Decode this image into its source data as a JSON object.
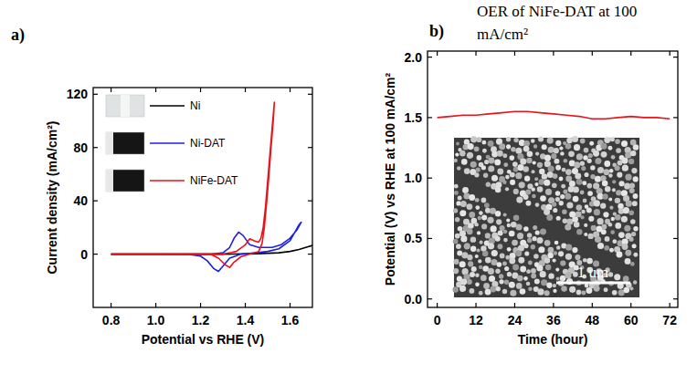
{
  "chart_data": [
    {
      "type": "line",
      "panel": "a)",
      "x_label": "Potential vs RHE (V)",
      "y_label": "Current density (mA/cm²)",
      "xlim": [
        0.72,
        1.7
      ],
      "ylim": [
        -40,
        125
      ],
      "xticks": [
        0.8,
        {
          "value": 1,
          "label": "1.0"
        },
        1.2,
        1.4,
        1.6
      ],
      "yticks": [
        0,
        40,
        80,
        120
      ],
      "grid": false,
      "legend": "upper left",
      "series": [
        {
          "name": "Ni",
          "color": "#000000",
          "x": [
            0.8,
            0.9,
            1.1,
            1.3,
            1.45,
            1.55,
            1.6,
            1.64,
            1.68,
            1.7
          ],
          "values": [
            0,
            0,
            0,
            0,
            0.3,
            1,
            2,
            3.5,
            5.5,
            6.5
          ]
        },
        {
          "name": "Ni-DAT",
          "color": "#1f1fe0",
          "x": [
            0.8,
            1.0,
            1.25,
            1.3,
            1.33,
            1.35,
            1.37,
            1.39,
            1.42,
            1.46,
            1.52,
            1.56,
            1.6,
            1.63,
            1.65,
            1.64,
            1.6,
            1.55,
            1.5,
            1.45,
            1.38,
            1.33,
            1.3,
            1.28,
            1.26,
            1.23,
            1.2,
            1.15,
            1.0,
            0.8
          ],
          "values": [
            0,
            0,
            0,
            1,
            5,
            12,
            16.5,
            14,
            7,
            5,
            5,
            7,
            12,
            18,
            24,
            22,
            10,
            4,
            2,
            1,
            0,
            -3,
            -9,
            -13,
            -11,
            -5,
            -1.5,
            -0.3,
            0,
            0
          ]
        },
        {
          "name": "NiFe-DAT",
          "color": "#e8141b",
          "x": [
            0.8,
            1.0,
            1.3,
            1.36,
            1.4,
            1.42,
            1.44,
            1.46,
            1.47,
            1.48,
            1.49,
            1.5,
            1.51,
            1.52,
            1.53,
            1.525,
            1.515,
            1.505,
            1.495,
            1.485,
            1.475,
            1.46,
            1.42,
            1.38,
            1.35,
            1.33,
            1.31,
            1.28,
            1.25,
            1.2,
            0.8
          ],
          "values": [
            0,
            0,
            0,
            2,
            7,
            11.5,
            10,
            9,
            12,
            20,
            35,
            55,
            75,
            95,
            114,
            100,
            80,
            58,
            38,
            20,
            8,
            2,
            0,
            -2,
            -6,
            -10,
            -8,
            -3,
            -0.5,
            0,
            0
          ]
        }
      ]
    },
    {
      "type": "line",
      "panel": "b)",
      "title": "OER of NiFe-DAT at 100 mA/cm²",
      "x_label": "Time (hour)",
      "y_label": "Potential (V) vs RHE at 100 mA/cm²",
      "annotations": [
        "1 um"
      ],
      "xlim": [
        -3,
        74.5
      ],
      "ylim": [
        -0.07,
        2.05
      ],
      "xticks": [
        0,
        12,
        24,
        36,
        48,
        60,
        72
      ],
      "yticks": [
        {
          "value": 0,
          "label": "0.0"
        },
        0.5,
        {
          "value": 1,
          "label": "1.0"
        },
        1.5,
        {
          "value": 2,
          "label": "2.0"
        }
      ],
      "grid": false,
      "x": [
        0,
        4,
        8,
        12,
        16,
        20,
        24,
        28,
        32,
        36,
        40,
        44,
        48,
        52,
        56,
        60,
        64,
        68,
        72
      ],
      "series": [
        {
          "color": "#e8141b",
          "values": [
            1.5,
            1.51,
            1.52,
            1.52,
            1.53,
            1.54,
            1.55,
            1.55,
            1.54,
            1.53,
            1.52,
            1.51,
            1.49,
            1.49,
            1.5,
            1.51,
            1.5,
            1.5,
            1.49
          ]
        }
      ]
    }
  ]
}
